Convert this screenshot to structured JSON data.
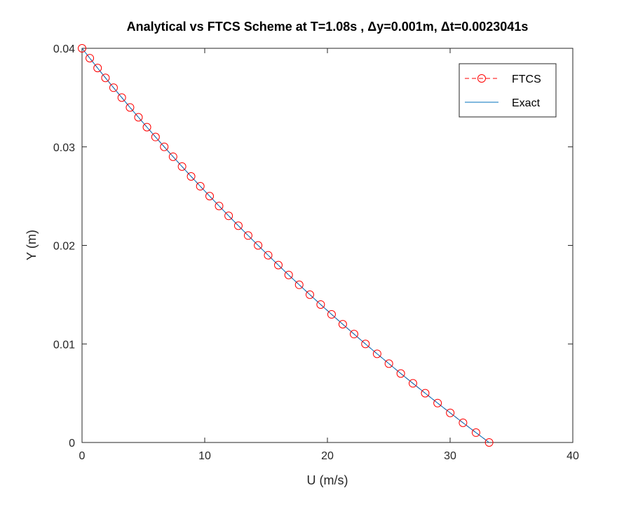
{
  "chart_data": {
    "type": "line",
    "title": "Analytical vs FTCS Scheme at T=1.08s , Δy=0.001m, Δt=0.0023041s",
    "xlabel": "U (m/s)",
    "ylabel": "Y (m)",
    "xlim": [
      0,
      40
    ],
    "ylim": [
      0,
      0.04
    ],
    "x_ticks": [
      "0",
      "10",
      "20",
      "30",
      "40"
    ],
    "y_ticks": [
      "0",
      "0.01",
      "0.02",
      "0.03",
      "0.04"
    ],
    "grid": false,
    "legend_position": "top-right",
    "y": [
      0.04,
      0.039,
      0.038,
      0.037,
      0.036,
      0.035,
      0.034,
      0.033,
      0.032,
      0.031,
      0.03,
      0.029,
      0.028,
      0.027,
      0.026,
      0.025,
      0.024,
      0.023,
      0.022,
      0.021,
      0.02,
      0.019,
      0.018,
      0.017,
      0.016,
      0.015,
      0.014,
      0.013,
      0.012,
      0.011,
      0.01,
      0.009,
      0.008,
      0.007,
      0.006,
      0.005,
      0.004,
      0.003,
      0.002,
      0.001,
      0.0
    ],
    "series": [
      {
        "name": "FTCS",
        "style": "dashed-circle-markers",
        "color": "#ff0000",
        "x": [
          0.0,
          0.63,
          1.27,
          1.91,
          2.57,
          3.24,
          3.91,
          4.6,
          5.29,
          5.99,
          6.7,
          7.42,
          8.15,
          8.89,
          9.64,
          10.4,
          11.17,
          11.95,
          12.74,
          13.54,
          14.35,
          15.17,
          16.0,
          16.84,
          17.7,
          18.57,
          19.45,
          20.34,
          21.25,
          22.17,
          23.1,
          24.05,
          25.01,
          25.98,
          26.97,
          27.97,
          28.98,
          30.01,
          31.05,
          32.11,
          33.18
        ]
      },
      {
        "name": "Exact",
        "style": "solid",
        "color": "#0072bd",
        "x": [
          0.0,
          0.63,
          1.27,
          1.91,
          2.57,
          3.24,
          3.91,
          4.6,
          5.29,
          5.99,
          6.7,
          7.42,
          8.15,
          8.89,
          9.64,
          10.4,
          11.17,
          11.95,
          12.74,
          13.54,
          14.35,
          15.17,
          16.0,
          16.84,
          17.7,
          18.57,
          19.45,
          20.34,
          21.25,
          22.17,
          23.1,
          24.05,
          25.01,
          25.98,
          26.97,
          27.97,
          28.98,
          30.01,
          31.05,
          32.11,
          33.18
        ]
      }
    ]
  }
}
